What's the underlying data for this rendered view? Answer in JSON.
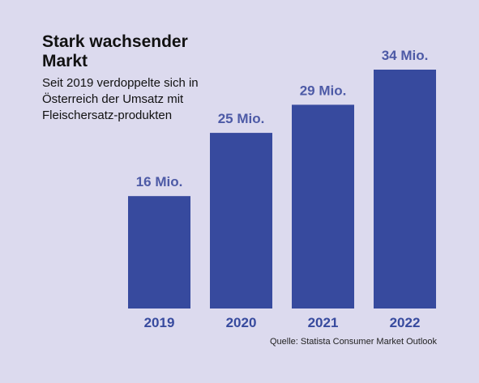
{
  "chart_data": {
    "type": "bar",
    "title": "Stark wachsender Markt",
    "subtitle": "Seit 2019 verdoppelte sich in Österreich der Umsatz mit Fleischersatz-produkten",
    "categories": [
      "2019",
      "2020",
      "2021",
      "2022"
    ],
    "values": [
      16,
      25,
      29,
      34
    ],
    "data_labels": [
      "16 Mio.",
      "25 Mio.",
      "29 Mio.",
      "34 Mio."
    ],
    "ylim": [
      0,
      34
    ],
    "grid": false,
    "bar_color": "#374a9e",
    "label_color": "#4d5aa6"
  },
  "source": "Quelle: Statista Consumer Market Outlook",
  "colors": {
    "background": "#dcdaee",
    "text": "#111111"
  }
}
